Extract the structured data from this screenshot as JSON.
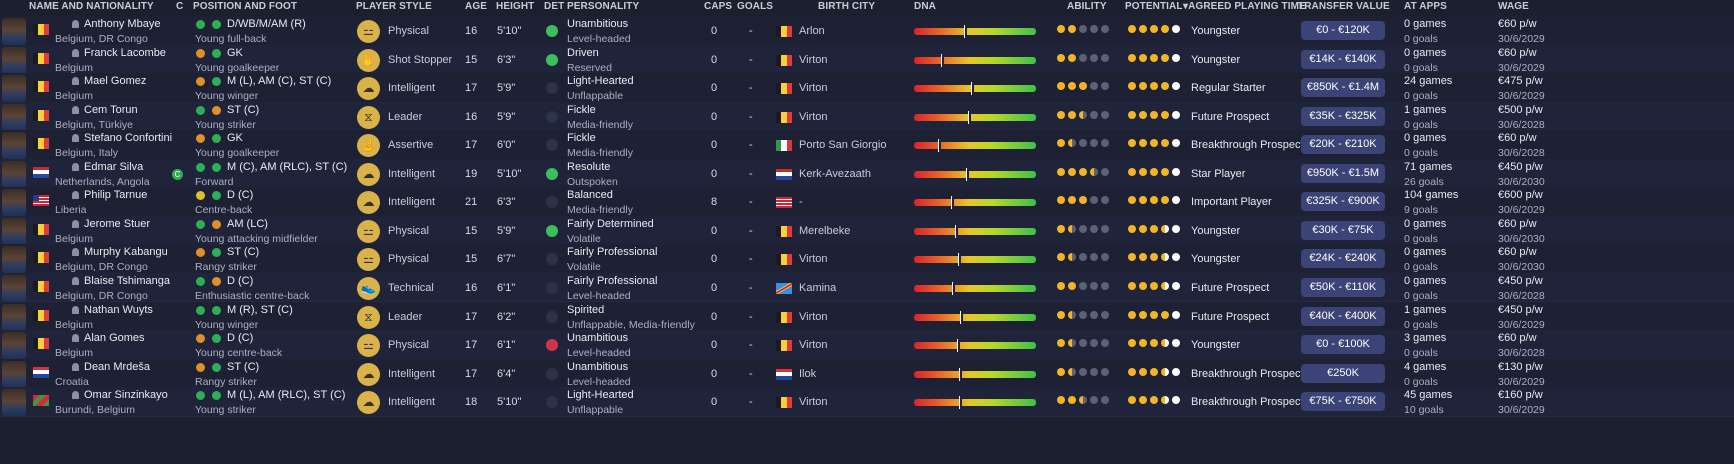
{
  "headers": {
    "name": "NAME AND NATIONALITY",
    "c": "C",
    "position": "POSITION AND FOOT",
    "style": "PLAYER STYLE",
    "age": "AGE",
    "height": "HEIGHT",
    "det": "DET",
    "personality": "PERSONALITY",
    "caps": "CAPS",
    "goals": "GOALS",
    "birth_city": "BIRTH CITY",
    "dna": "DNA",
    "ability": "ABILITY",
    "potential": "POTENTIAL",
    "playing_time": "AGREED PLAYING TIME",
    "transfer_value": "TRANSFER VALUE",
    "at_apps": "AT APPS",
    "wage": "WAGE"
  },
  "colors": {
    "background": "#1c1f2e",
    "value_pill": "#3b4377",
    "star": "#f1b527",
    "det_good": "#3bbf5c",
    "det_bad": "#d0344a"
  },
  "players": [
    {
      "name": "Anthony Mbaye",
      "nat": "Belgium, DR Congo",
      "flag": "be",
      "pos": "D/WB/M/AM (R)",
      "role": "Young full-back",
      "foot1": "#2fae58",
      "foot2": "#2fae58",
      "style": "Physical",
      "style_icon": "dumbbell-icon",
      "age": "16",
      "height": "5'10\"",
      "det": "g",
      "pers": "Unambitious",
      "pers2": "Level-headed",
      "caps": "0",
      "goals": "-",
      "bflag": "be",
      "bcity": "Arlon",
      "dna": 0.41,
      "ability": [
        "f",
        "f",
        "e",
        "e",
        "e"
      ],
      "potential": [
        "f",
        "f",
        "f",
        "f",
        "w"
      ],
      "apt": "Youngster",
      "tv": "€0 - €120K",
      "apps": "0 games",
      "agoals": "0 goals",
      "wage": "€60 p/w",
      "wexp": "30/6/2029"
    },
    {
      "name": "Franck Lacombe",
      "nat": "Belgium",
      "flag": "be",
      "pos": "GK",
      "role": "Young goalkeeper",
      "foot1": "#e0902a",
      "foot2": "#2fae58",
      "style": "Shot Stopper",
      "style_icon": "glove-icon",
      "age": "15",
      "height": "6'3\"",
      "det": "g",
      "pers": "Driven",
      "pers2": "Reserved",
      "caps": "0",
      "goals": "-",
      "bflag": "be",
      "bcity": "Virton",
      "dna": 0.22,
      "ability": [
        "f",
        "f",
        "e",
        "e",
        "e"
      ],
      "potential": [
        "f",
        "f",
        "f",
        "f",
        "w"
      ],
      "apt": "Youngster",
      "tv": "€14K - €140K",
      "apps": "0 games",
      "agoals": "0 goals",
      "wage": "€60 p/w",
      "wexp": "30/6/2029"
    },
    {
      "name": "Mael Gomez",
      "nat": "Belgium",
      "flag": "be",
      "pos": "M (L), AM (C), ST (C)",
      "role": "Young winger",
      "foot1": "#e0902a",
      "foot2": "#2fae58",
      "style": "Intelligent",
      "style_icon": "brain-icon",
      "age": "17",
      "height": "5'9\"",
      "det": "n",
      "pers": "Light-Hearted",
      "pers2": "Unflappable",
      "caps": "0",
      "goals": "-",
      "bflag": "be",
      "bcity": "Virton",
      "dna": 0.47,
      "ability": [
        "f",
        "f",
        "f",
        "e",
        "e"
      ],
      "potential": [
        "f",
        "f",
        "f",
        "f",
        "w"
      ],
      "apt": "Regular Starter",
      "tv": "€850K - €1.4M",
      "apps": "24 games",
      "agoals": "0 goals",
      "wage": "€475 p/w",
      "wexp": "30/6/2029"
    },
    {
      "name": "Cem Torun",
      "nat": "Belgium, Türkiye",
      "flag": "be",
      "pos": "ST (C)",
      "role": "Young striker",
      "foot1": "#2fae58",
      "foot2": "#e0902a",
      "style": "Leader",
      "style_icon": "dna-icon",
      "age": "16",
      "height": "5'9\"",
      "det": "n",
      "pers": "Fickle",
      "pers2": "Media-friendly",
      "caps": "0",
      "goals": "-",
      "bflag": "be",
      "bcity": "Virton",
      "dna": 0.44,
      "ability": [
        "f",
        "f",
        "h",
        "e",
        "e"
      ],
      "potential": [
        "f",
        "f",
        "f",
        "f",
        "w"
      ],
      "apt": "Future Prospect",
      "tv": "€35K - €325K",
      "apps": "1 games",
      "agoals": "0 goals",
      "wage": "€500 p/w",
      "wexp": "30/6/2028"
    },
    {
      "name": "Stefano Confortini",
      "nat": "Belgium, Italy",
      "flag": "be",
      "pos": "GK",
      "role": "Young goalkeeper",
      "foot1": "#e0902a",
      "foot2": "#2fae58",
      "style": "Assertive",
      "style_icon": "assertive-icon",
      "age": "17",
      "height": "6'0\"",
      "det": "n",
      "pers": "Fickle",
      "pers2": "Media-friendly",
      "caps": "0",
      "goals": "-",
      "bflag": "it",
      "bcity": "Porto San Giorgio",
      "dna": 0.2,
      "ability": [
        "f",
        "h",
        "e",
        "e",
        "e"
      ],
      "potential": [
        "f",
        "f",
        "f",
        "f",
        "w"
      ],
      "apt": "Breakthrough Prospect",
      "tv": "€20K - €210K",
      "apps": "0 games",
      "agoals": "0 goals",
      "wage": "€60 p/w",
      "wexp": "30/6/2028"
    },
    {
      "name": "Edmar Silva",
      "nat": "Netherlands, Angola",
      "flag": "nl",
      "pos": "M (C), AM (RLC), ST (C)",
      "role": "Forward",
      "foot1": "#2fae58",
      "foot2": "#2fae58",
      "style": "Intelligent",
      "style_icon": "brain-icon",
      "age": "19",
      "height": "5'10\"",
      "det": "g",
      "pers": "Resolute",
      "pers2": "Outspoken",
      "caps": "0",
      "goals": "-",
      "bflag": "nl",
      "bcity": "Kerk-Avezaath",
      "dna": 0.43,
      "ability": [
        "f",
        "f",
        "f",
        "h",
        "e"
      ],
      "potential": [
        "f",
        "f",
        "f",
        "f",
        "w"
      ],
      "apt": "Star Player",
      "tv": "€950K - €1.5M",
      "apps": "71 games",
      "agoals": "26 goals",
      "wage": "€450 p/w",
      "wexp": "30/6/2030",
      "hg": true
    },
    {
      "name": "Philip Tarnue",
      "nat": "Liberia",
      "flag": "lr",
      "pos": "D (C)",
      "role": "Centre-back",
      "foot1": "#e0c02a",
      "foot2": "#2fae58",
      "style": "Intelligent",
      "style_icon": "brain-icon",
      "age": "21",
      "height": "6'3\"",
      "det": "n",
      "pers": "Balanced",
      "pers2": "Media-friendly",
      "caps": "8",
      "goals": "-",
      "bflag": "lr",
      "bcity": "-",
      "dna": 0.3,
      "ability": [
        "f",
        "f",
        "f",
        "e",
        "e"
      ],
      "potential": [
        "f",
        "f",
        "f",
        "f",
        "w"
      ],
      "apt": "Important Player",
      "tv": "€325K - €900K",
      "apps": "104 games",
      "agoals": "9 goals",
      "wage": "€600 p/w",
      "wexp": "30/6/2029"
    },
    {
      "name": "Jerome Stuer",
      "nat": "Belgium",
      "flag": "be",
      "pos": "AM (LC)",
      "role": "Young attacking midfielder",
      "foot1": "#2fae58",
      "foot2": "#e0902a",
      "style": "Physical",
      "style_icon": "dumbbell-icon",
      "age": "15",
      "height": "5'9\"",
      "det": "g",
      "pers": "Fairly Determined",
      "pers2": "Volatile",
      "caps": "0",
      "goals": "-",
      "bflag": "be",
      "bcity": "Merelbeke",
      "dna": 0.34,
      "ability": [
        "f",
        "h",
        "e",
        "e",
        "e"
      ],
      "potential": [
        "f",
        "f",
        "f",
        "hw",
        "w"
      ],
      "apt": "Youngster",
      "tv": "€30K - €75K",
      "apps": "0 games",
      "agoals": "0 goals",
      "wage": "€60 p/w",
      "wexp": "30/6/2030"
    },
    {
      "name": "Murphy Kabangu",
      "nat": "Belgium, DR Congo",
      "flag": "be",
      "pos": "ST (C)",
      "role": "Rangy striker",
      "foot1": "#e0902a",
      "foot2": "#2fae58",
      "style": "Physical",
      "style_icon": "dumbbell-icon",
      "age": "15",
      "height": "6'7\"",
      "det": "n",
      "pers": "Fairly Professional",
      "pers2": "Volatile",
      "caps": "0",
      "goals": "-",
      "bflag": "be",
      "bcity": "Virton",
      "dna": 0.36,
      "ability": [
        "f",
        "h",
        "e",
        "e",
        "e"
      ],
      "potential": [
        "f",
        "f",
        "f",
        "hw",
        "w"
      ],
      "apt": "Youngster",
      "tv": "€24K - €240K",
      "apps": "0 games",
      "agoals": "0 goals",
      "wage": "€60 p/w",
      "wexp": "30/6/2030"
    },
    {
      "name": "Blaise Tshimanga",
      "nat": "Belgium, DR Congo",
      "flag": "be",
      "pos": "D (C)",
      "role": "Enthusiastic centre-back",
      "foot1": "#2fae58",
      "foot2": "#e0902a",
      "style": "Technical",
      "style_icon": "boot-icon",
      "age": "16",
      "height": "6'1\"",
      "det": "n",
      "pers": "Fairly Professional",
      "pers2": "Level-headed",
      "caps": "0",
      "goals": "-",
      "bflag": "cd",
      "bcity": "Kamina",
      "dna": 0.31,
      "ability": [
        "f",
        "f",
        "e",
        "e",
        "e"
      ],
      "potential": [
        "f",
        "f",
        "f",
        "hw",
        "w"
      ],
      "apt": "Future Prospect",
      "tv": "€50K - €110K",
      "apps": "0 games",
      "agoals": "0 goals",
      "wage": "€450 p/w",
      "wexp": "30/6/2028"
    },
    {
      "name": "Nathan Wuyts",
      "nat": "Belgium",
      "flag": "be",
      "pos": "M (R), ST (C)",
      "role": "Young winger",
      "foot1": "#2fae58",
      "foot2": "#2fae58",
      "style": "Leader",
      "style_icon": "dna-icon",
      "age": "17",
      "height": "6'2\"",
      "det": "n",
      "pers": "Spirited",
      "pers2": "Unflappable, Media-friendly",
      "caps": "0",
      "goals": "-",
      "bflag": "be",
      "bcity": "Virton",
      "dna": 0.38,
      "ability": [
        "f",
        "h",
        "e",
        "e",
        "e"
      ],
      "potential": [
        "f",
        "f",
        "f",
        "f",
        "w"
      ],
      "apt": "Future Prospect",
      "tv": "€40K - €400K",
      "apps": "1 games",
      "agoals": "0 goals",
      "wage": "€450 p/w",
      "wexp": "30/6/2029"
    },
    {
      "name": "Alan Gomes",
      "nat": "Belgium",
      "flag": "be",
      "pos": "D (C)",
      "role": "Young centre-back",
      "foot1": "#e0902a",
      "foot2": "#2fae58",
      "style": "Physical",
      "style_icon": "dumbbell-icon",
      "age": "17",
      "height": "6'1\"",
      "det": "r",
      "pers": "Unambitious",
      "pers2": "Level-headed",
      "caps": "0",
      "goals": "-",
      "bflag": "be",
      "bcity": "Virton",
      "dna": 0.35,
      "ability": [
        "f",
        "h",
        "e",
        "e",
        "e"
      ],
      "potential": [
        "f",
        "f",
        "f",
        "hw",
        "w"
      ],
      "apt": "Youngster",
      "tv": "€0 - €100K",
      "apps": "3 games",
      "agoals": "0 goals",
      "wage": "€60 p/w",
      "wexp": "30/6/2028"
    },
    {
      "name": "Dean Mrdeša",
      "nat": "Croatia",
      "flag": "hr",
      "pos": "ST (C)",
      "role": "Rangy striker",
      "foot1": "#e0902a",
      "foot2": "#2fae58",
      "style": "Intelligent",
      "style_icon": "brain-icon",
      "age": "17",
      "height": "6'4\"",
      "det": "n",
      "pers": "Unambitious",
      "pers2": "Level-headed",
      "caps": "0",
      "goals": "-",
      "bflag": "hr",
      "bcity": "Ilok",
      "dna": 0.37,
      "ability": [
        "f",
        "h",
        "e",
        "e",
        "e"
      ],
      "potential": [
        "f",
        "f",
        "f",
        "hw",
        "w"
      ],
      "apt": "Breakthrough Prospect",
      "tv": "€250K",
      "apps": "4 games",
      "agoals": "0 goals",
      "wage": "€130 p/w",
      "wexp": "30/6/2029"
    },
    {
      "name": "Omar Sinzinkayo",
      "nat": "Burundi, Belgium",
      "flag": "bi",
      "pos": "M (L), AM (RLC), ST (C)",
      "role": "Young striker",
      "foot1": "#2fae58",
      "foot2": "#2fae58",
      "style": "Intelligent",
      "style_icon": "brain-icon",
      "age": "18",
      "height": "5'10\"",
      "det": "n",
      "pers": "Light-Hearted",
      "pers2": "Unflappable",
      "caps": "0",
      "goals": "-",
      "bflag": "be",
      "bcity": "Virton",
      "dna": 0.37,
      "ability": [
        "f",
        "f",
        "h",
        "e",
        "e"
      ],
      "potential": [
        "f",
        "f",
        "f",
        "hw",
        "w"
      ],
      "apt": "Breakthrough Prospect",
      "tv": "€75K - €750K",
      "apps": "45 games",
      "agoals": "10 goals",
      "wage": "€160 p/w",
      "wexp": "30/6/2029"
    }
  ]
}
